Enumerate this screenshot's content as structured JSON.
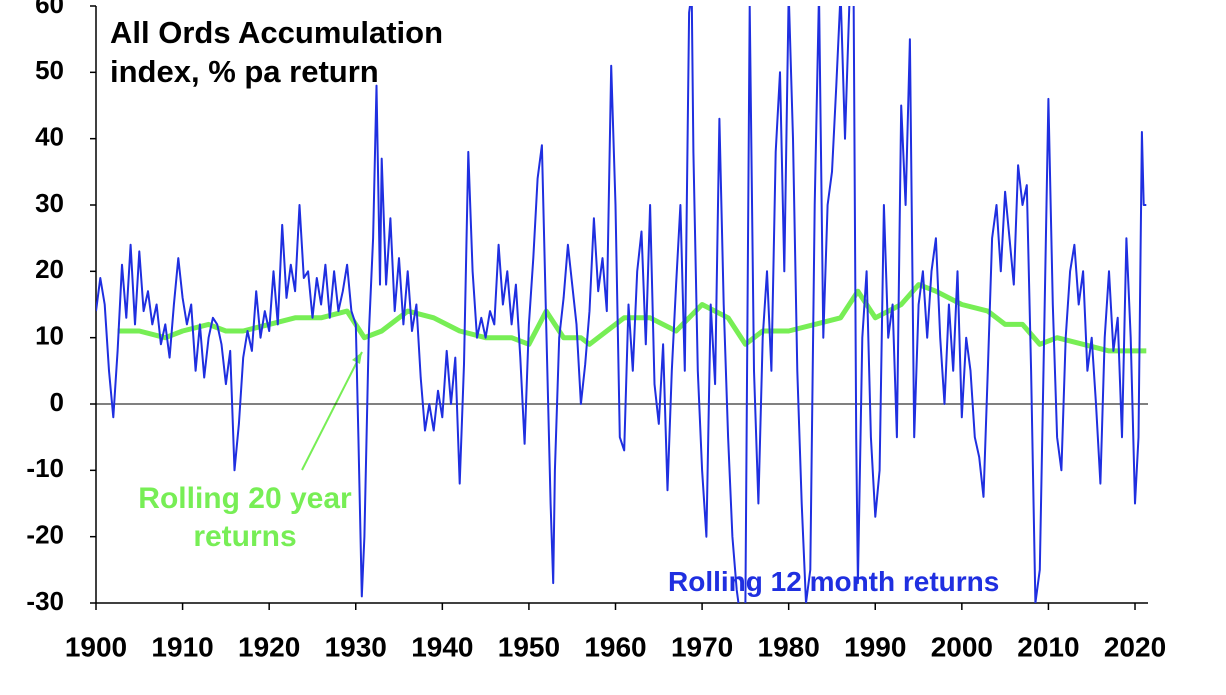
{
  "chart_data": {
    "type": "line",
    "title": "All Ords Accumulation index, % pa return",
    "xlim": [
      1900,
      2021.5
    ],
    "xticks": [
      1900,
      1910,
      1920,
      1930,
      1940,
      1950,
      1960,
      1970,
      1980,
      1990,
      2000,
      2010,
      2020
    ],
    "ylim": [
      -30,
      60
    ],
    "yticks": [
      -30,
      -20,
      -10,
      0,
      10,
      20,
      30,
      40,
      50,
      60
    ],
    "series": [
      {
        "name": "Rolling 12 month returns",
        "color": "#1f2fe0",
        "x": [
          1900,
          1900.5,
          1901,
          1901.5,
          1902,
          1902.5,
          1903,
          1903.5,
          1904,
          1904.5,
          1905,
          1905.5,
          1906,
          1906.5,
          1907,
          1907.5,
          1908,
          1908.5,
          1909,
          1909.5,
          1910,
          1910.5,
          1911,
          1911.5,
          1912,
          1912.5,
          1913,
          1913.5,
          1914,
          1914.5,
          1915,
          1915.5,
          1916,
          1916.5,
          1917,
          1917.5,
          1918,
          1918.5,
          1919,
          1919.5,
          1920,
          1920.5,
          1921,
          1921.5,
          1922,
          1922.5,
          1923,
          1923.5,
          1924,
          1924.5,
          1925,
          1925.5,
          1926,
          1926.5,
          1927,
          1927.5,
          1928,
          1928.5,
          1929,
          1929.5,
          1930,
          1930.3,
          1930.7,
          1931,
          1931.5,
          1932,
          1932.4,
          1932.8,
          1933,
          1933.5,
          1934,
          1934.5,
          1935,
          1935.5,
          1936,
          1936.5,
          1937,
          1937.5,
          1938,
          1938.5,
          1939,
          1939.5,
          1940,
          1940.5,
          1941,
          1941.5,
          1942,
          1942.5,
          1943,
          1943.5,
          1944,
          1944.5,
          1945,
          1945.5,
          1946,
          1946.5,
          1947,
          1947.5,
          1948,
          1948.5,
          1949,
          1949.5,
          1950,
          1950.5,
          1951,
          1951.5,
          1952,
          1952.5,
          1952.8,
          1953,
          1953.5,
          1954,
          1954.5,
          1955,
          1955.5,
          1956,
          1956.5,
          1957,
          1957.5,
          1958,
          1958.5,
          1959,
          1959.5,
          1960,
          1960.5,
          1961,
          1961.5,
          1962,
          1962.5,
          1963,
          1963.5,
          1964,
          1964.5,
          1965,
          1965.5,
          1966,
          1966.5,
          1967,
          1967.5,
          1968,
          1968.5,
          1968.8,
          1969,
          1969.5,
          1970,
          1970.5,
          1971,
          1971.5,
          1972,
          1972.5,
          1973,
          1973.5,
          1974,
          1974.5,
          1975,
          1975.5,
          1976,
          1976.5,
          1977,
          1977.5,
          1978,
          1978.5,
          1979,
          1979.5,
          1980,
          1980.5,
          1981,
          1981.5,
          1982,
          1982.5,
          1983,
          1983.5,
          1984,
          1984.5,
          1985,
          1985.5,
          1986,
          1986.5,
          1987,
          1987.5,
          1987.8,
          1988,
          1988.5,
          1989,
          1989.5,
          1990,
          1990.5,
          1991,
          1991.5,
          1992,
          1992.5,
          1993,
          1993.5,
          1994,
          1994.5,
          1995,
          1995.5,
          1996,
          1996.5,
          1997,
          1997.5,
          1998,
          1998.5,
          1999,
          1999.5,
          2000,
          2000.5,
          2001,
          2001.5,
          2002,
          2002.5,
          2003,
          2003.5,
          2004,
          2004.5,
          2005,
          2005.5,
          2006,
          2006.5,
          2007,
          2007.5,
          2008,
          2008.5,
          2009,
          2009.5,
          2010,
          2010.5,
          2011,
          2011.5,
          2012,
          2012.5,
          2013,
          2013.5,
          2014,
          2014.5,
          2015,
          2015.5,
          2016,
          2016.5,
          2017,
          2017.5,
          2018,
          2018.5,
          2019,
          2019.5,
          2020,
          2020.4,
          2020.8,
          2021,
          2021.3
        ],
        "values": [
          14,
          19,
          15,
          5,
          -2,
          8,
          21,
          13,
          24,
          12,
          23,
          14,
          17,
          12,
          15,
          9,
          12,
          7,
          15,
          22,
          16,
          12,
          15,
          5,
          12,
          4,
          10,
          13,
          12,
          9,
          3,
          8,
          -10,
          -3,
          7,
          11,
          8,
          17,
          10,
          14,
          11,
          20,
          12,
          27,
          16,
          21,
          17,
          30,
          19,
          20,
          13,
          19,
          15,
          21,
          13,
          20,
          14,
          17,
          21,
          14,
          12,
          -5,
          -29,
          -20,
          10,
          25,
          48,
          18,
          37,
          18,
          28,
          14,
          22,
          12,
          20,
          11,
          15,
          4,
          -4,
          0,
          -4,
          2,
          -2,
          8,
          0,
          7,
          -12,
          6,
          38,
          20,
          10,
          13,
          10,
          14,
          12,
          24,
          15,
          20,
          12,
          18,
          7,
          -6,
          12,
          22,
          34,
          39,
          12,
          -15,
          -27,
          -10,
          10,
          16,
          24,
          18,
          12,
          0,
          6,
          14,
          28,
          17,
          22,
          14,
          51,
          30,
          -5,
          -7,
          15,
          5,
          20,
          26,
          9,
          30,
          3,
          -3,
          9,
          -13,
          5,
          18,
          30,
          5,
          59,
          62,
          38,
          5,
          -10,
          -20,
          15,
          3,
          43,
          15,
          -5,
          -20,
          -28,
          -33,
          -30,
          60,
          5,
          -15,
          10,
          20,
          5,
          38,
          50,
          20,
          62,
          40,
          5,
          -15,
          -30,
          -25,
          30,
          62,
          10,
          30,
          35,
          48,
          62,
          40,
          60,
          62,
          -5,
          -27,
          10,
          20,
          -5,
          -17,
          -10,
          30,
          10,
          15,
          -5,
          45,
          30,
          55,
          -5,
          15,
          20,
          10,
          20,
          25,
          10,
          0,
          15,
          5,
          20,
          -2,
          10,
          5,
          -5,
          -8,
          -14,
          5,
          25,
          30,
          20,
          32,
          25,
          18,
          36,
          30,
          33,
          5,
          -30,
          -25,
          10,
          46,
          15,
          -5,
          -10,
          10,
          20,
          24,
          15,
          20,
          5,
          10,
          0,
          -12,
          10,
          20,
          8,
          13,
          -5,
          25,
          10,
          -15,
          -5,
          41,
          30,
          30
        ]
      },
      {
        "name": "Rolling 20 year returns",
        "color": "#77ee55",
        "x": [
          1902.5,
          1905,
          1908,
          1910,
          1913,
          1915,
          1917,
          1920,
          1923,
          1926,
          1929,
          1931,
          1933,
          1936,
          1939,
          1942,
          1945,
          1948,
          1950,
          1952,
          1954,
          1956,
          1957,
          1959,
          1961,
          1964,
          1967,
          1970,
          1973,
          1975,
          1977,
          1980,
          1983,
          1986,
          1988,
          1990,
          1993,
          1995,
          1997,
          2000,
          2003,
          2005,
          2007,
          2009,
          2011,
          2014,
          2017,
          2020,
          2021.3
        ],
        "values": [
          11,
          11,
          10,
          11,
          12,
          11,
          11,
          12,
          13,
          13,
          14,
          10,
          11,
          14,
          13,
          11,
          10,
          10,
          9,
          14,
          10,
          10,
          9,
          11,
          13,
          13,
          11,
          15,
          13,
          9,
          11,
          11,
          12,
          13,
          17,
          13,
          15,
          18,
          17,
          15,
          14,
          12,
          12,
          9,
          10,
          9,
          8,
          8,
          8
        ]
      }
    ]
  }
}
